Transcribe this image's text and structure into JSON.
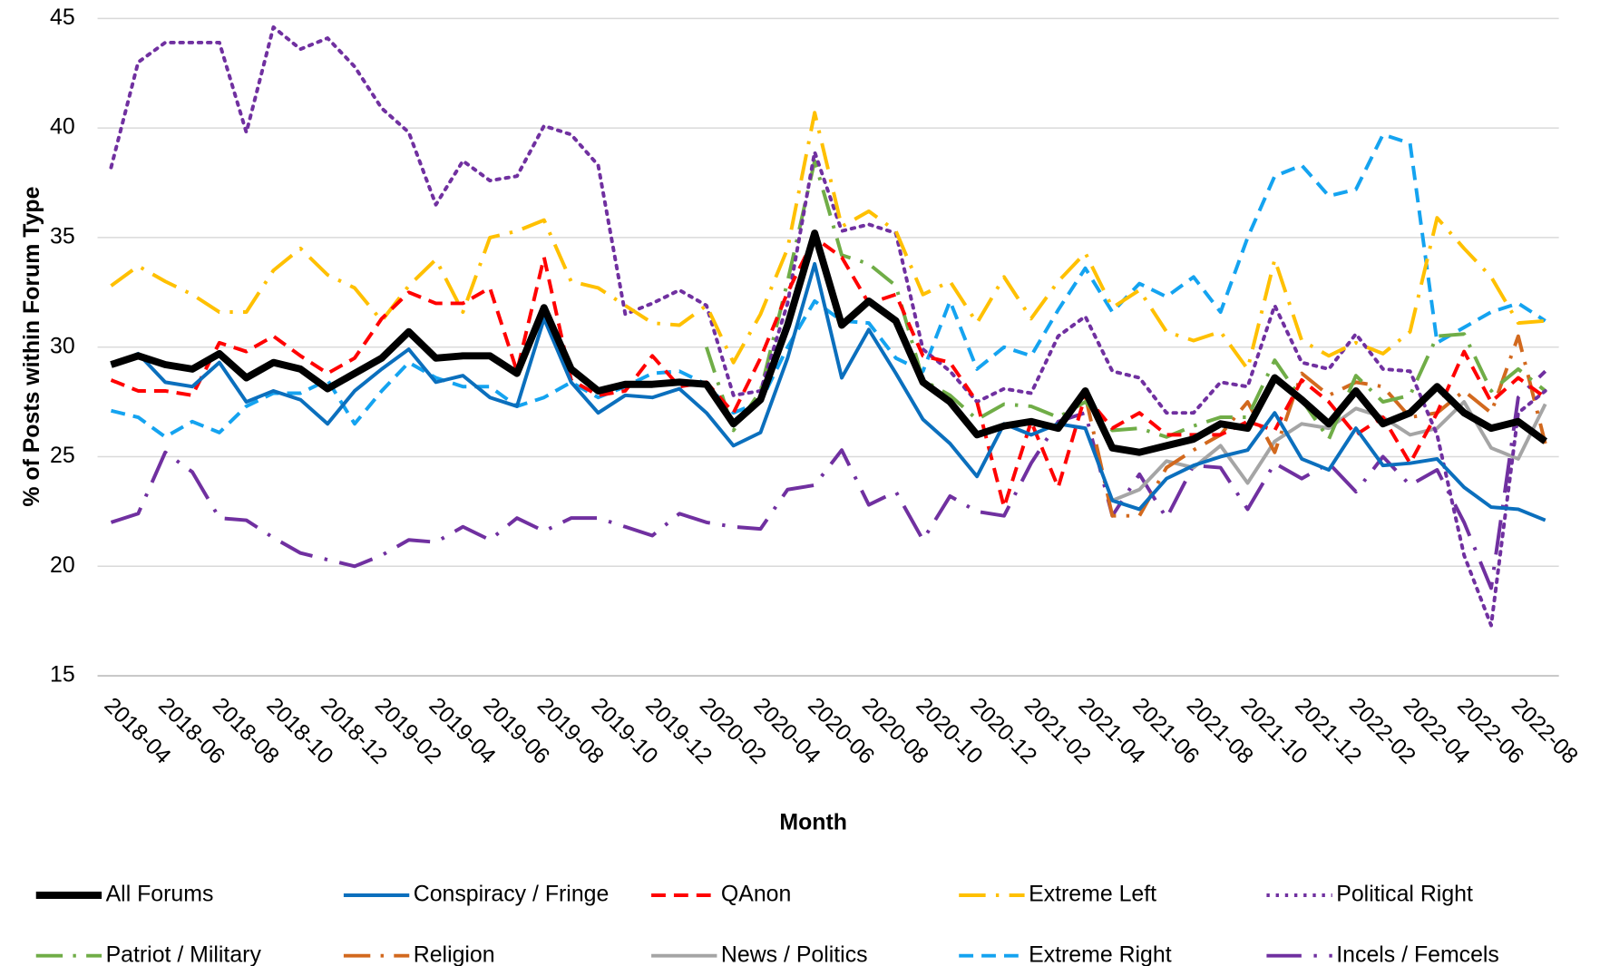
{
  "chart_data": {
    "type": "line",
    "y_label": "% of Posts within Forum Type",
    "x_label": "Month",
    "ylim": [
      15,
      45
    ],
    "yticks": [
      15,
      20,
      25,
      30,
      35,
      40,
      45
    ],
    "grid": true,
    "legend": "bottom",
    "categories": [
      null,
      "2018-04",
      null,
      "2018-06",
      null,
      "2018-08",
      null,
      "2018-10",
      null,
      "2018-12",
      null,
      "2019-02",
      null,
      "2019-04",
      null,
      "2019-06",
      null,
      "2019-08",
      null,
      "2019-10",
      null,
      "2019-12",
      null,
      "2020-02",
      null,
      "2020-04",
      null,
      "2020-06",
      null,
      "2020-08",
      null,
      "2020-10",
      null,
      "2020-12",
      null,
      "2021-02",
      null,
      "2021-04",
      null,
      "2021-06",
      null,
      "2021-08",
      null,
      "2021-10",
      null,
      "2021-12",
      null,
      "2022-02",
      null,
      "2022-04",
      null,
      "2022-06",
      null,
      "2022-08"
    ],
    "series": [
      {
        "name": "All Forums",
        "color": "#000000",
        "style": "bold",
        "values": [
          29.2,
          29.6,
          29.2,
          29.0,
          29.7,
          28.6,
          29.3,
          29.0,
          28.1,
          28.8,
          29.5,
          30.7,
          29.5,
          29.6,
          29.6,
          28.8,
          31.8,
          29.0,
          28.0,
          28.3,
          28.3,
          28.4,
          28.3,
          26.5,
          27.6,
          31.0,
          35.2,
          31.0,
          32.1,
          31.2,
          28.4,
          27.5,
          26.0,
          26.4,
          26.6,
          26.3,
          28.0,
          25.4,
          25.2,
          25.5,
          25.8,
          26.5,
          26.3,
          28.6,
          27.6,
          26.5,
          28.0,
          26.5,
          27.0,
          28.2,
          27.0,
          26.3,
          26.6,
          25.7
        ]
      },
      {
        "name": "Conspiracy / Fringe",
        "color": "#0b6fbd",
        "style": "solid",
        "values": [
          29.2,
          29.7,
          28.4,
          28.2,
          29.3,
          27.5,
          28.0,
          27.6,
          26.5,
          28.0,
          29.0,
          29.9,
          28.4,
          28.7,
          27.7,
          27.3,
          31.3,
          28.4,
          27.0,
          27.8,
          27.7,
          28.1,
          27.0,
          25.5,
          26.1,
          29.5,
          33.8,
          28.6,
          30.8,
          28.8,
          26.7,
          25.6,
          24.1,
          26.5,
          26.0,
          26.5,
          26.3,
          23.0,
          22.6,
          24.0,
          24.6,
          25.0,
          25.3,
          27.0,
          24.9,
          24.4,
          26.3,
          24.6,
          24.7,
          24.9,
          23.6,
          22.7,
          22.6,
          22.1
        ]
      },
      {
        "name": "QAnon",
        "color": "#ff0000",
        "style": "dashed",
        "values": [
          28.5,
          28.0,
          28.0,
          27.8,
          30.2,
          29.8,
          30.5,
          29.6,
          28.8,
          29.5,
          31.3,
          32.5,
          32.0,
          32.0,
          32.7,
          28.9,
          34.1,
          28.5,
          27.8,
          28.0,
          29.6,
          28.2,
          28.4,
          27.0,
          29.5,
          32.5,
          35.0,
          34.1,
          32.0,
          32.4,
          29.6,
          29.3,
          27.5,
          22.7,
          26.6,
          23.6,
          27.8,
          26.3,
          27.0,
          26.0,
          26.0,
          26.0,
          26.6,
          26.2,
          28.5,
          27.5,
          26.0,
          26.8,
          24.7,
          27.0,
          29.8,
          27.5,
          28.6,
          27.7
        ]
      },
      {
        "name": "Extreme Left",
        "color": "#ffc000",
        "style": "dash-dot",
        "values": [
          32.8,
          33.7,
          33.0,
          32.4,
          31.6,
          31.6,
          33.5,
          34.5,
          33.3,
          32.7,
          31.2,
          32.8,
          34.0,
          31.6,
          35.0,
          35.3,
          35.8,
          33.0,
          32.7,
          31.9,
          31.1,
          31.0,
          31.9,
          29.3,
          31.5,
          34.5,
          40.7,
          35.5,
          36.2,
          35.3,
          32.4,
          33.0,
          31.1,
          33.2,
          31.3,
          33.0,
          34.3,
          31.8,
          32.6,
          30.7,
          30.3,
          30.7,
          29.0,
          34.0,
          30.3,
          29.6,
          30.2,
          29.7,
          30.7,
          35.9,
          34.5,
          33.2,
          31.1,
          31.2
        ]
      },
      {
        "name": "Political Right",
        "color": "#7030a0",
        "style": "dotted",
        "values": [
          38.2,
          43.0,
          43.9,
          43.9,
          43.9,
          39.8,
          44.6,
          43.6,
          44.1,
          42.8,
          40.9,
          39.8,
          36.5,
          38.5,
          37.6,
          37.8,
          40.1,
          39.7,
          38.3,
          31.5,
          32.0,
          32.6,
          31.9,
          27.8,
          28.0,
          32.0,
          38.9,
          35.3,
          35.6,
          35.2,
          29.9,
          28.9,
          27.5,
          28.1,
          27.9,
          30.5,
          31.4,
          28.9,
          28.6,
          27.0,
          27.0,
          28.4,
          28.2,
          31.9,
          29.3,
          29.0,
          30.6,
          29.0,
          28.9,
          26.0,
          20.5,
          17.3,
          27.0,
          28.0
        ]
      },
      {
        "name": "Patriot / Military",
        "color": "#70ad47",
        "style": "dash-dot",
        "values": [
          null,
          null,
          null,
          null,
          null,
          null,
          null,
          null,
          null,
          null,
          null,
          null,
          null,
          null,
          null,
          null,
          null,
          null,
          null,
          null,
          null,
          null,
          30.0,
          26.2,
          28.0,
          33.0,
          38.5,
          34.2,
          33.8,
          32.8,
          28.5,
          27.8,
          26.7,
          27.4,
          27.3,
          26.8,
          27.5,
          26.2,
          26.3,
          25.9,
          26.4,
          26.8,
          26.8,
          29.4,
          27.6,
          25.8,
          28.7,
          27.5,
          27.8,
          30.5,
          30.6,
          28.0,
          29.0,
          28.0
        ]
      },
      {
        "name": "Religion",
        "color": "#d2691e",
        "style": "dash-dot",
        "values": [
          null,
          null,
          null,
          null,
          null,
          null,
          null,
          null,
          null,
          null,
          null,
          null,
          null,
          null,
          null,
          null,
          null,
          null,
          null,
          null,
          null,
          null,
          null,
          null,
          null,
          null,
          null,
          null,
          null,
          null,
          null,
          null,
          null,
          null,
          null,
          null,
          27.8,
          22.3,
          22.3,
          24.5,
          25.3,
          26.0,
          27.5,
          25.2,
          28.8,
          27.8,
          28.4,
          28.2,
          26.8,
          27.0,
          28.0,
          27.0,
          30.5,
          25.6
        ]
      },
      {
        "name": "News / Politics",
        "color": "#a5a5a5",
        "style": "solid",
        "values": [
          null,
          null,
          null,
          null,
          null,
          null,
          null,
          null,
          null,
          null,
          null,
          null,
          null,
          null,
          null,
          null,
          null,
          null,
          null,
          null,
          null,
          null,
          null,
          null,
          null,
          null,
          null,
          null,
          null,
          null,
          null,
          null,
          null,
          null,
          null,
          null,
          null,
          23.0,
          23.5,
          24.8,
          24.5,
          25.5,
          23.8,
          25.7,
          26.5,
          26.3,
          27.2,
          26.8,
          26.0,
          26.3,
          27.5,
          25.4,
          24.9,
          27.4
        ]
      },
      {
        "name": "Extreme Right",
        "color": "#14a3f0",
        "style": "dashed",
        "values": [
          27.1,
          26.8,
          25.9,
          26.6,
          26.1,
          27.3,
          27.9,
          27.9,
          28.5,
          26.5,
          28.0,
          29.3,
          28.6,
          28.2,
          28.2,
          27.3,
          27.7,
          28.4,
          27.7,
          28.2,
          28.8,
          28.9,
          28.3,
          27.0,
          27.5,
          30.0,
          32.1,
          31.2,
          31.1,
          29.5,
          28.9,
          32.1,
          29.0,
          30.0,
          29.6,
          31.7,
          33.6,
          31.6,
          32.9,
          32.3,
          33.2,
          31.6,
          35.0,
          37.8,
          38.3,
          36.9,
          37.2,
          39.7,
          39.3,
          30.2,
          30.9,
          31.6,
          32.0,
          31.2
        ]
      },
      {
        "name": "Incels / Femcels",
        "color": "#7030a0",
        "style": "long-dash-dot",
        "values": [
          22.0,
          22.4,
          25.2,
          24.3,
          22.2,
          22.1,
          21.3,
          20.6,
          20.3,
          20.0,
          20.5,
          21.2,
          21.1,
          21.8,
          21.2,
          22.2,
          21.6,
          22.2,
          22.2,
          21.8,
          21.4,
          22.4,
          22.0,
          21.8,
          21.7,
          23.5,
          23.7,
          25.3,
          22.8,
          23.4,
          21.2,
          23.2,
          22.5,
          22.3,
          24.7,
          26.6,
          27.0,
          22.3,
          24.2,
          22.2,
          24.6,
          24.5,
          22.6,
          24.7,
          24.0,
          24.7,
          23.4,
          25.0,
          23.7,
          24.4,
          22.0,
          19.0,
          27.7,
          28.9
        ]
      }
    ]
  }
}
